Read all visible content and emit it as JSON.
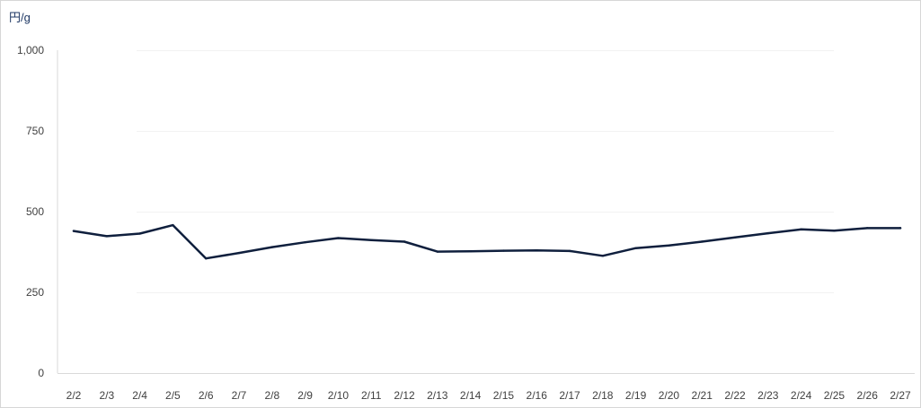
{
  "chart_data": {
    "type": "line",
    "ylabel": "円/g",
    "ylim": [
      0,
      1000
    ],
    "yticks": [
      0,
      250,
      500,
      750,
      1000
    ],
    "ytick_labels": [
      "0",
      "250",
      "500",
      "750",
      "1,000"
    ],
    "categories": [
      "2/2",
      "2/3",
      "2/4",
      "2/5",
      "2/6",
      "2/7",
      "2/8",
      "2/9",
      "2/10",
      "2/11",
      "2/12",
      "2/13",
      "2/14",
      "2/15",
      "2/16",
      "2/17",
      "2/18",
      "2/19",
      "2/20",
      "2/21",
      "2/22",
      "2/23",
      "2/24",
      "2/25",
      "2/26",
      "2/27"
    ],
    "series": [
      {
        "values": [
          440,
          424,
          432,
          458,
          355,
          372,
          390,
          405,
          418,
          412,
          407,
          376,
          377,
          379,
          380,
          378,
          363,
          387,
          395,
          407,
          420,
          433,
          445,
          441,
          449,
          449
        ],
        "color": "#0f1f3d"
      }
    ],
    "grid": true,
    "legend": "none"
  }
}
